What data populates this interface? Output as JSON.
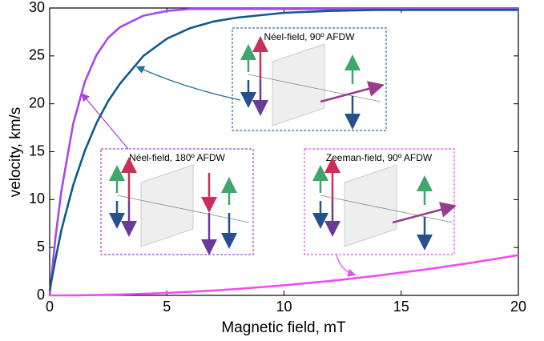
{
  "chart_data": {
    "type": "line",
    "xlabel": "Magnetic field, mT",
    "ylabel": "velocity, km/s",
    "x": [
      0,
      0.25,
      0.5,
      1,
      1.5,
      2,
      2.5,
      3,
      4,
      5,
      6,
      7,
      8,
      10,
      12,
      14,
      16,
      18,
      20
    ],
    "series": [
      {
        "color": "#a646f5",
        "values": [
          0,
          6.1,
          10.9,
          17.9,
          22.3,
          25.1,
          26.9,
          28.0,
          29.2,
          29.7,
          29.9,
          29.9,
          29.9,
          29.9,
          29.9,
          29.9,
          29.9,
          29.9,
          29.9
        ]
      },
      {
        "color": "#0f5a8c",
        "values": [
          0.5,
          3.8,
          6.8,
          11.5,
          15.1,
          18.0,
          20.3,
          22.1,
          25.0,
          26.8,
          27.9,
          28.6,
          29.0,
          29.5,
          29.7,
          29.8,
          29.8,
          29.8,
          29.8
        ]
      },
      {
        "color": "#ee4ef0",
        "values": [
          0,
          0,
          0,
          0.01,
          0.02,
          0.04,
          0.07,
          0.09,
          0.17,
          0.26,
          0.38,
          0.51,
          0.67,
          1.05,
          1.51,
          2.06,
          2.69,
          3.4,
          4.2
        ]
      }
    ],
    "xlim": [
      0,
      20
    ],
    "xticks": [
      0,
      5,
      10,
      15,
      20
    ],
    "ylim": [
      0,
      30
    ],
    "yticks": [
      0,
      5,
      10,
      15,
      20,
      25,
      30
    ],
    "annotations": [
      "Néel-field, 90º AFDW",
      "Néel-field, 180º AFDW",
      "Zeeman-field, 90º AFDW"
    ]
  }
}
